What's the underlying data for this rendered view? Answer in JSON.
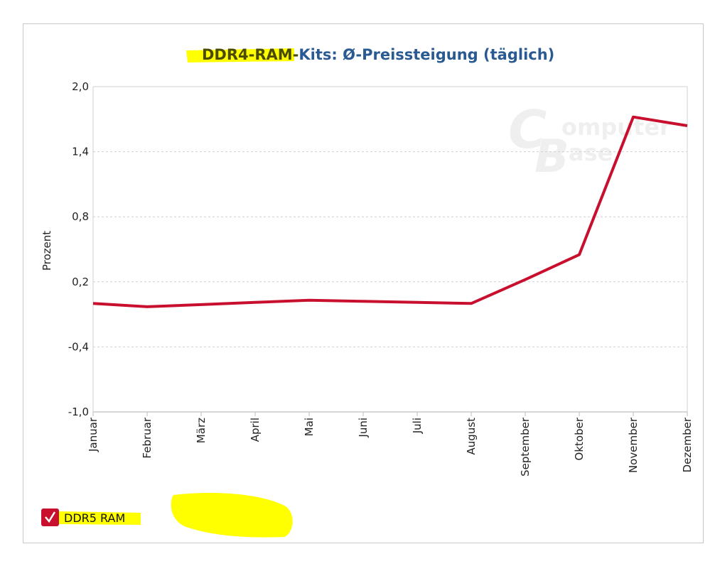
{
  "title": {
    "highlighted": "DDR4-RAM-",
    "rest": "Kits: Ø-Preissteigung (täglich)"
  },
  "watermark": "ComputerBase",
  "legend": {
    "label": "DDR5 RAM",
    "checked": true
  },
  "colors": {
    "line": "#c8102e",
    "title": "#2a5a92",
    "highlight": "#ffff00",
    "grid": "#d8d8d8"
  },
  "chart_data": {
    "type": "line",
    "title": "DDR4-RAM-Kits: Ø-Preissteigung (täglich)",
    "xlabel": "",
    "ylabel": "Prozent",
    "ylim": [
      -1.0,
      2.0
    ],
    "yticks": [
      "2,0",
      "1,4",
      "0,8",
      "0,2",
      "-0,4",
      "-1,0"
    ],
    "ytick_values": [
      2.0,
      1.4,
      0.8,
      0.2,
      -0.4,
      -1.0
    ],
    "grid": true,
    "legend_position": "bottom-left",
    "categories": [
      "Januar",
      "Februar",
      "März",
      "April",
      "Mai",
      "Juni",
      "Juli",
      "August",
      "September",
      "Oktober",
      "November",
      "Dezember"
    ],
    "series": [
      {
        "name": "DDR5 RAM",
        "values": [
          0.0,
          -0.03,
          -0.01,
          0.01,
          0.03,
          0.02,
          0.01,
          0.0,
          0.22,
          0.45,
          1.72,
          1.64
        ]
      }
    ]
  }
}
